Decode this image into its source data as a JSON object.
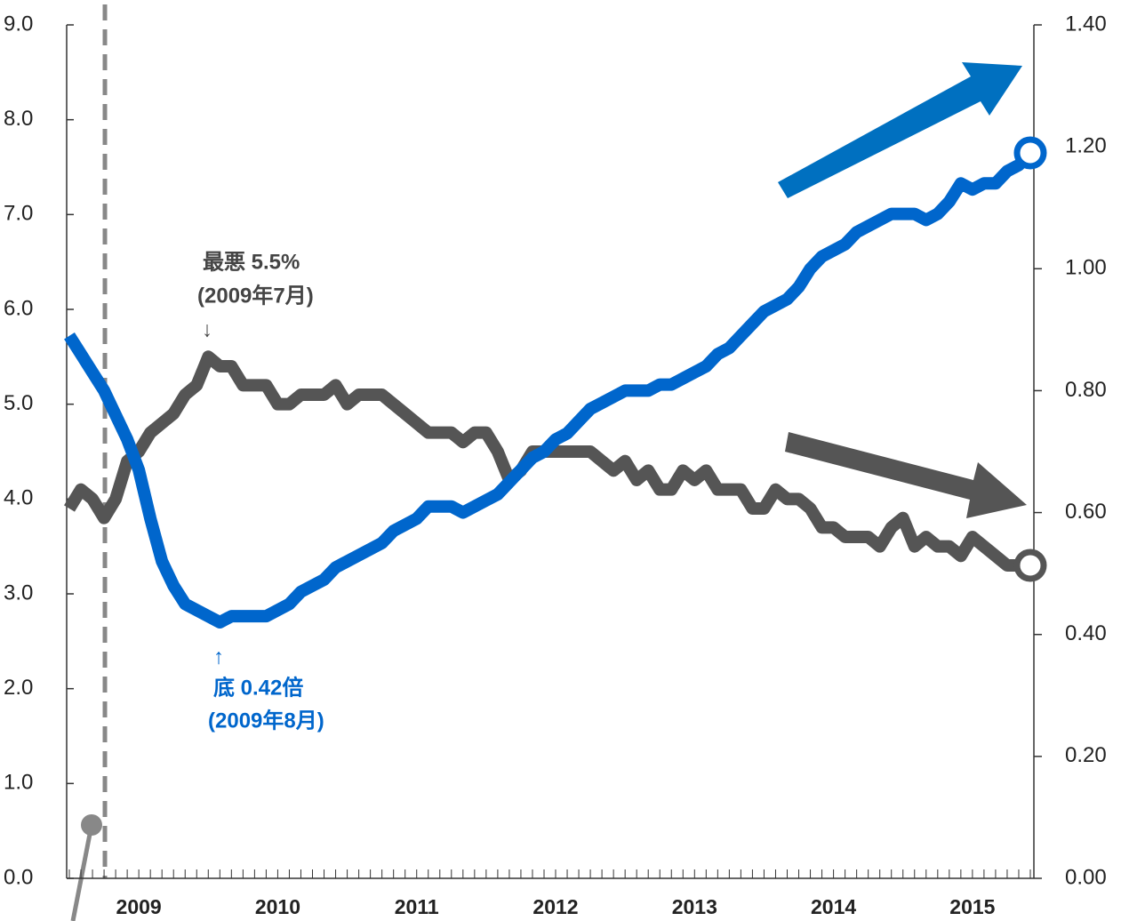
{
  "chart_data": {
    "type": "line",
    "categories": [
      null,
      null,
      null,
      null,
      null,
      null,
      "2009",
      null,
      null,
      null,
      null,
      null,
      null,
      null,
      null,
      null,
      null,
      null,
      "2010",
      null,
      null,
      null,
      null,
      null,
      null,
      null,
      null,
      null,
      null,
      null,
      "2011",
      null,
      null,
      null,
      null,
      null,
      null,
      null,
      null,
      null,
      null,
      null,
      "2012",
      null,
      null,
      null,
      null,
      null,
      null,
      null,
      null,
      null,
      null,
      null,
      "2013",
      null,
      null,
      null,
      null,
      null,
      null,
      null,
      null,
      null,
      null,
      null,
      "2014",
      null,
      null,
      null,
      null,
      null,
      null,
      null,
      null,
      null,
      null,
      null,
      "2015",
      null,
      null,
      null,
      null,
      null
    ],
    "series": [
      {
        "color": "#555555",
        "values": [
          3.9,
          4.1,
          4.0,
          3.8,
          4.0,
          4.4,
          4.5,
          4.7,
          4.8,
          4.9,
          5.1,
          5.2,
          5.5,
          5.4,
          5.4,
          5.2,
          5.2,
          5.2,
          5.0,
          5.0,
          5.1,
          5.1,
          5.1,
          5.2,
          5.0,
          5.1,
          5.1,
          5.1,
          5.0,
          4.9,
          4.8,
          4.7,
          4.7,
          4.7,
          4.6,
          4.7,
          4.7,
          4.5,
          4.2,
          4.3,
          4.5,
          4.5,
          4.5,
          4.5,
          4.5,
          4.5,
          4.4,
          4.3,
          4.4,
          4.2,
          4.3,
          4.1,
          4.1,
          4.3,
          4.2,
          4.3,
          4.1,
          4.1,
          4.1,
          3.9,
          3.9,
          4.1,
          4.0,
          4.0,
          3.9,
          3.7,
          3.7,
          3.6,
          3.6,
          3.6,
          3.5,
          3.7,
          3.8,
          3.5,
          3.6,
          3.5,
          3.5,
          3.4,
          3.6,
          3.5,
          3.4,
          3.3,
          3.3,
          3.3
        ]
      },
      {
        "color": "#0066cc",
        "axis": "y2",
        "values": [
          0.89,
          0.86,
          0.83,
          0.8,
          0.76,
          0.72,
          0.67,
          0.59,
          0.52,
          0.48,
          0.45,
          0.44,
          0.43,
          0.42,
          0.43,
          0.43,
          0.43,
          0.43,
          0.44,
          0.45,
          0.47,
          0.48,
          0.49,
          0.51,
          0.52,
          0.53,
          0.54,
          0.55,
          0.57,
          0.58,
          0.59,
          0.61,
          0.61,
          0.61,
          0.6,
          0.61,
          0.62,
          0.63,
          0.65,
          0.67,
          0.69,
          0.7,
          0.72,
          0.73,
          0.75,
          0.77,
          0.78,
          0.79,
          0.8,
          0.8,
          0.8,
          0.81,
          0.81,
          0.82,
          0.83,
          0.84,
          0.86,
          0.87,
          0.89,
          0.91,
          0.93,
          0.94,
          0.95,
          0.97,
          1.0,
          1.02,
          1.03,
          1.04,
          1.06,
          1.07,
          1.08,
          1.09,
          1.09,
          1.09,
          1.08,
          1.09,
          1.11,
          1.14,
          1.13,
          1.14,
          1.14,
          1.16,
          1.17,
          1.19
        ]
      }
    ],
    "ylim": [
      0,
      9
    ],
    "yticks": [
      {
        "value": 0,
        "label": "0.0"
      },
      {
        "value": 1,
        "label": "1.0"
      },
      {
        "value": 2,
        "label": "2.0"
      },
      {
        "value": 3,
        "label": "3.0"
      },
      {
        "value": 4,
        "label": "4.0"
      },
      {
        "value": 5,
        "label": "5.0"
      },
      {
        "value": 6,
        "label": "6.0"
      },
      {
        "value": 7,
        "label": "7.0"
      },
      {
        "value": 8,
        "label": "8.0"
      },
      {
        "value": 9,
        "label": "9.0"
      }
    ],
    "y2lim": [
      0,
      1.4
    ],
    "y2ticks": [
      {
        "value": 0,
        "label": "0.00"
      },
      {
        "value": 0.2,
        "label": "0.20"
      },
      {
        "value": 0.4,
        "label": "0.40"
      },
      {
        "value": 0.6,
        "label": "0.60"
      },
      {
        "value": 0.8,
        "label": "0.80"
      },
      {
        "value": 1.0,
        "label": "1.00"
      },
      {
        "value": 1.2,
        "label": "1.20"
      },
      {
        "value": 1.4,
        "label": "1.40"
      }
    ],
    "annotations": [
      "最悪 5.5%",
      "(2009年7月)",
      "↓",
      "↑",
      "底 0.42倍",
      "(2009年8月)"
    ]
  }
}
